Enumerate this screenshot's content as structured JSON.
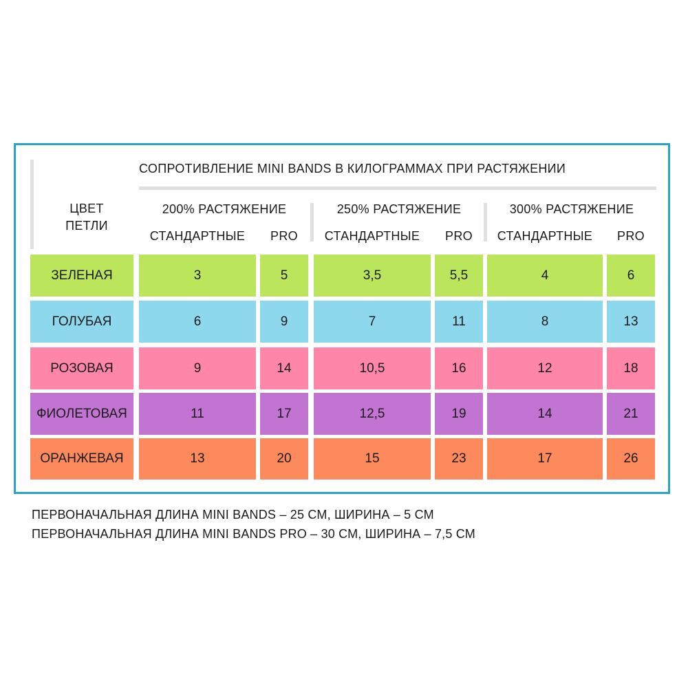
{
  "title": "СОПРОТИВЛЕНИЕ MINI BANDS В КИЛОГРАММАХ ПРИ РАСТЯЖЕНИИ",
  "row_header": [
    "ЦВЕТ",
    "ПЕТЛИ"
  ],
  "groups": [
    {
      "label": "200% РАСТЯЖЕНИЕ",
      "std": "СТАНДАРТНЫЕ",
      "pro": "PRO"
    },
    {
      "label": "250% РАСТЯЖЕНИЕ",
      "std": "СТАНДАРТНЫЕ",
      "pro": "PRO"
    },
    {
      "label": "300% РАСТЯЖЕНИЕ",
      "std": "СТАНДАРТНЫЕ",
      "pro": "PRO"
    }
  ],
  "rows": [
    {
      "color_name": "ЗЕЛЕНАЯ",
      "hex": "#bbe55a",
      "values": [
        "3",
        "5",
        "3,5",
        "5,5",
        "4",
        "6"
      ]
    },
    {
      "color_name": "ГОЛУБАЯ",
      "hex": "#8ed8ee",
      "values": [
        "6",
        "9",
        "7",
        "11",
        "8",
        "13"
      ]
    },
    {
      "color_name": "РОЗОВАЯ",
      "hex": "#fd86a9",
      "values": [
        "9",
        "14",
        "10,5",
        "16",
        "12",
        "18"
      ]
    },
    {
      "color_name": "ФИОЛЕТОВАЯ",
      "hex": "#c274d2",
      "values": [
        "11",
        "17",
        "12,5",
        "19",
        "14",
        "21"
      ]
    },
    {
      "color_name": "ОРАНЖЕВАЯ",
      "hex": "#fd8a5d",
      "values": [
        "13",
        "20",
        "15",
        "23",
        "17",
        "26"
      ]
    }
  ],
  "footnotes": [
    "ПЕРВОНАЧАЛЬНАЯ ДЛИНА MINI BANDS – 25 СМ, ШИРИНА – 5 СМ",
    "ПЕРВОНАЧАЛЬНАЯ ДЛИНА MINI BANDS PRO – 30 СМ, ШИРИНА – 7,5 СМ"
  ],
  "frame_color": "#2aa3c8"
}
